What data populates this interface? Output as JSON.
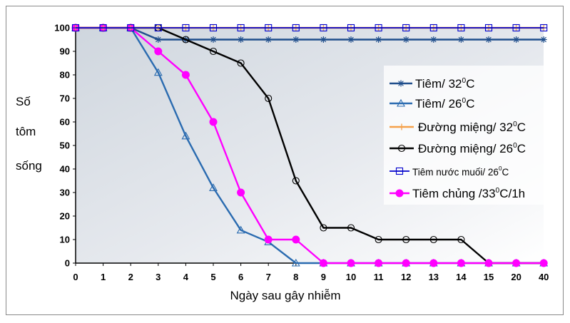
{
  "chart_data": {
    "type": "line",
    "title": "",
    "ylabel_lines": [
      "Số",
      "tôm",
      "sống"
    ],
    "xlabel": "Ngày sau gây nhiễm",
    "categories": [
      "0",
      "1",
      "2",
      "3",
      "4",
      "5",
      "6",
      "7",
      "8",
      "9",
      "10",
      "11",
      "12",
      "13",
      "14",
      "15",
      "20",
      "40"
    ],
    "ylim": [
      0,
      100
    ],
    "yticks": [
      "0",
      "10",
      "20",
      "30",
      "40",
      "50",
      "60",
      "70",
      "80",
      "90",
      "100"
    ],
    "grid": false,
    "legend_position": "right",
    "series": [
      {
        "name": "Tiêm/ 32°C",
        "name_parts": [
          "Tiêm/ 32",
          "0",
          "C"
        ],
        "color": "#1f4e8c",
        "marker": "star",
        "values": [
          100,
          100,
          100,
          95,
          95,
          95,
          95,
          95,
          95,
          95,
          95,
          95,
          95,
          95,
          95,
          95,
          95,
          95
        ]
      },
      {
        "name": "Tiêm/ 26°C",
        "name_parts": [
          "Tiêm/ 26",
          "0",
          "C"
        ],
        "color": "#2a6bb0",
        "marker": "triangle",
        "values": [
          100,
          100,
          100,
          81,
          54,
          32,
          14,
          9,
          0,
          0,
          0,
          0,
          0,
          0,
          0,
          0,
          0,
          0
        ]
      },
      {
        "name": "Đường miệng/ 32°C",
        "name_parts": [
          "Đường miệng/ 32",
          "0",
          "C"
        ],
        "color": "#f5a04a",
        "marker": "plus",
        "values": [
          100,
          100,
          100,
          100,
          100,
          100,
          100,
          100,
          100,
          100,
          100,
          100,
          100,
          100,
          100,
          100,
          100,
          100
        ]
      },
      {
        "name": "Đường miệng/ 26°C",
        "name_parts": [
          "Đường miệng/ 26",
          "0",
          "C"
        ],
        "color": "#000000",
        "marker": "circle",
        "values": [
          100,
          100,
          100,
          100,
          95,
          90,
          85,
          70,
          35,
          15,
          15,
          10,
          10,
          10,
          10,
          0,
          0,
          0
        ]
      },
      {
        "name": "Tiêm nước muối/ 26°C",
        "name_parts": [
          "Tiêm nước muối/ 26",
          "0",
          "C"
        ],
        "color": "#0000cc",
        "marker": "square",
        "values": [
          100,
          100,
          100,
          100,
          100,
          100,
          100,
          100,
          100,
          100,
          100,
          100,
          100,
          100,
          100,
          100,
          100,
          100
        ]
      },
      {
        "name": "Tiêm chủng /33°C/1h",
        "name_parts": [
          "Tiêm chủng /33",
          "0",
          "C/1h"
        ],
        "color": "#ff00ff",
        "marker": "dot",
        "values": [
          100,
          100,
          100,
          90,
          80,
          60,
          30,
          10,
          10,
          0,
          0,
          0,
          0,
          0,
          0,
          0,
          0,
          0
        ]
      }
    ]
  }
}
